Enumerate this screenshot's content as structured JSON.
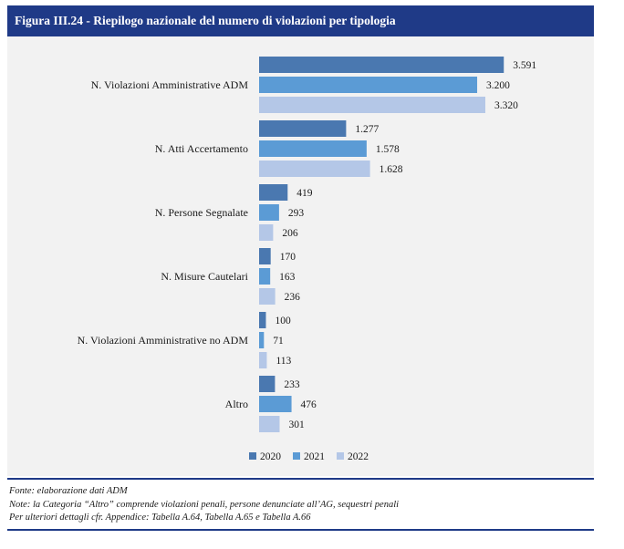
{
  "figure": {
    "title": "Figura III.24 - Riepilogo nazionale del numero di violazioni per tipologia"
  },
  "chart_data": {
    "type": "bar",
    "orientation": "horizontal",
    "categories": [
      "N. Violazioni Amministrative ADM",
      "N. Atti Accertamento",
      "N. Persone Segnalate",
      "N. Misure Cautelari",
      "N. Violazioni Amministrative no ADM",
      "Altro"
    ],
    "series": [
      {
        "name": "2020",
        "color": "#4a78b0",
        "values": [
          3591,
          1277,
          419,
          170,
          100,
          233
        ],
        "labels": [
          "3.591",
          "1.277",
          "419",
          "170",
          "100",
          "233"
        ]
      },
      {
        "name": "2021",
        "color": "#5b9bd5",
        "values": [
          3200,
          1578,
          293,
          163,
          71,
          476
        ],
        "labels": [
          "3.200",
          "1.578",
          "293",
          "163",
          "71",
          "476"
        ]
      },
      {
        "name": "2022",
        "color": "#b4c7e7",
        "values": [
          3320,
          1628,
          206,
          236,
          113,
          301
        ],
        "labels": [
          "3.320",
          "1.628",
          "206",
          "236",
          "113",
          "301"
        ]
      }
    ],
    "xlim": [
      0,
      3700
    ],
    "grid": false,
    "legend_position": "bottom"
  },
  "notes": {
    "source": "Fonte: elaborazione dati ADM",
    "note": "Note: la Categoria “Altro” comprende violazioni penali, persone denunciate all’AG, sequestri penali",
    "details": "Per ulteriori dettagli cfr. Appendice: Tabella A.64, Tabella A.65 e Tabella A.66"
  }
}
